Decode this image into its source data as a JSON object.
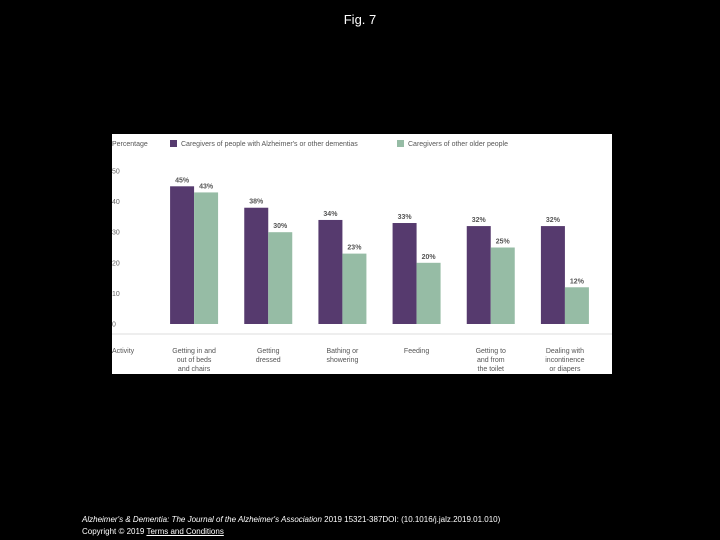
{
  "figure": {
    "title": "Fig. 7"
  },
  "footer": {
    "journal": "Alzheimer's & Dementia: The Journal of the Alzheimer's Association",
    "citation": " 2019 15321-387DOI: (10.1016/j.jalz.2019.01.010)",
    "copyright": "Copyright © 2019 ",
    "terms_link": "Terms and Conditions"
  },
  "chart_data": {
    "type": "bar",
    "ylabel": "Percentage",
    "xlabel": "Activity",
    "ylim": [
      0,
      50
    ],
    "yticks": [
      "0",
      "10",
      "20",
      "30",
      "40",
      "50"
    ],
    "legend_position": "top",
    "categories": [
      [
        "Getting in and",
        "out of beds",
        "and chairs"
      ],
      [
        "Getting",
        "dressed"
      ],
      [
        "Bathing or",
        "showering"
      ],
      [
        "Feeding"
      ],
      [
        "Getting to",
        "and from",
        "the toilet"
      ],
      [
        "Dealing with",
        "incontinence",
        "or diapers"
      ]
    ],
    "series": [
      {
        "name": "Caregivers of people with Alzheimer's or other dementias",
        "color": "#563a6e",
        "values": [
          45,
          38,
          34,
          33,
          32,
          32
        ],
        "labels": [
          "45%",
          "38%",
          "34%",
          "33%",
          "32%",
          "32%"
        ]
      },
      {
        "name": "Caregivers of other older people",
        "color": "#96bca5",
        "values": [
          43,
          30,
          23,
          20,
          25,
          12
        ],
        "labels": [
          "43%",
          "30%",
          "23%",
          "20%",
          "25%",
          "12%"
        ]
      }
    ],
    "grid": false
  }
}
